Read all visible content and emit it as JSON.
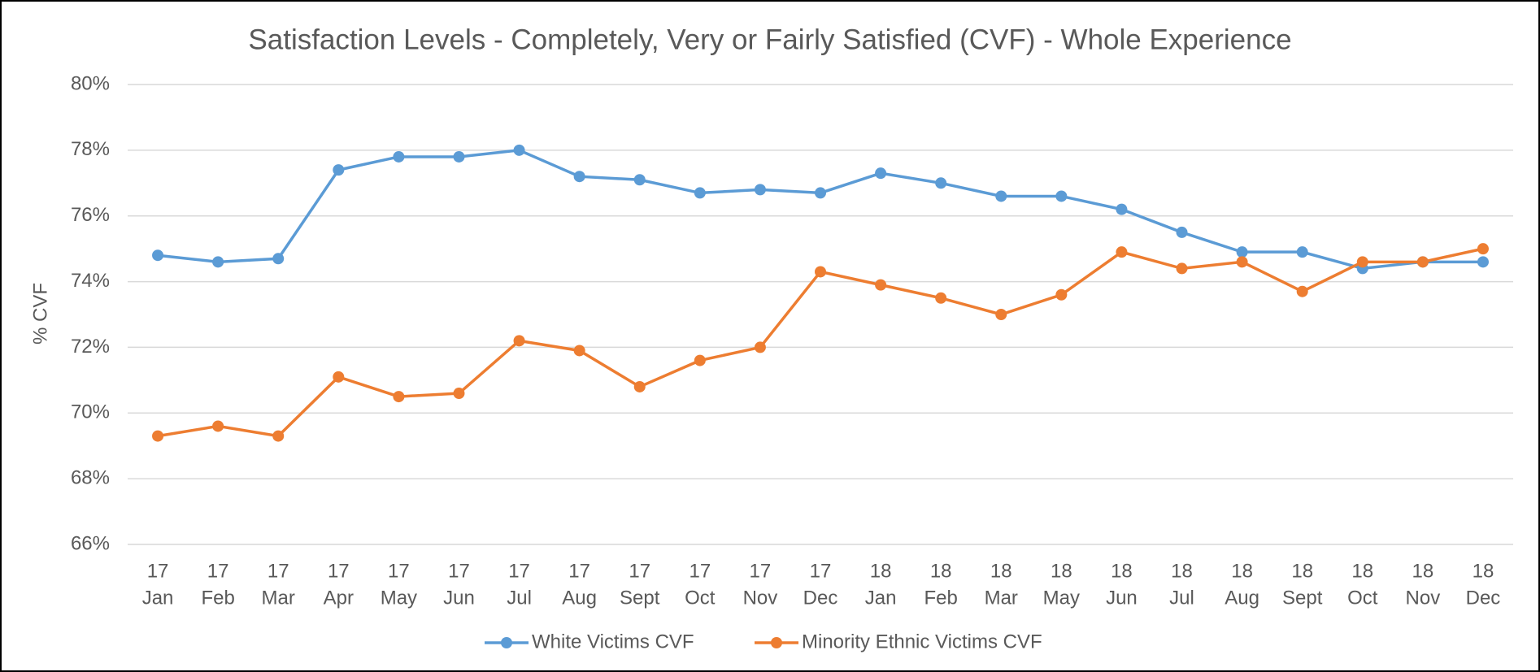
{
  "chart_data": {
    "type": "line",
    "title": "Satisfaction Levels - Completely, Very or Fairly Satisfied (CVF) - Whole Experience",
    "y_label": "% CVF",
    "categories": [
      [
        "17",
        "Jan"
      ],
      [
        "17",
        "Feb"
      ],
      [
        "17",
        "Mar"
      ],
      [
        "17",
        "Apr"
      ],
      [
        "17",
        "May"
      ],
      [
        "17",
        "Jun"
      ],
      [
        "17",
        "Jul"
      ],
      [
        "17",
        "Aug"
      ],
      [
        "17",
        "Sept"
      ],
      [
        "17",
        "Oct"
      ],
      [
        "17",
        "Nov"
      ],
      [
        "17",
        "Dec"
      ],
      [
        "18",
        "Jan"
      ],
      [
        "18",
        "Feb"
      ],
      [
        "18",
        "Mar"
      ],
      [
        "18",
        "May"
      ],
      [
        "18",
        "Jun"
      ],
      [
        "18",
        "Jul"
      ],
      [
        "18",
        "Aug"
      ],
      [
        "18",
        "Sept"
      ],
      [
        "18",
        "Oct"
      ],
      [
        "18",
        "Nov"
      ],
      [
        "18",
        "Dec"
      ]
    ],
    "series": [
      {
        "name": "White Victims CVF",
        "color": "#5b9bd5",
        "values": [
          74.8,
          74.6,
          74.7,
          77.4,
          77.8,
          77.8,
          78.0,
          77.2,
          77.1,
          76.7,
          76.8,
          76.7,
          77.3,
          77.0,
          76.6,
          76.6,
          76.2,
          75.5,
          74.9,
          74.9,
          74.4,
          74.6,
          74.6
        ]
      },
      {
        "name": "Minority Ethnic Victims CVF",
        "color": "#ed7d31",
        "values": [
          69.3,
          69.6,
          69.3,
          71.1,
          70.5,
          70.6,
          72.2,
          71.9,
          70.8,
          71.6,
          72.0,
          74.3,
          73.9,
          73.5,
          73.0,
          73.6,
          74.9,
          74.4,
          74.6,
          73.7,
          74.6,
          74.6,
          75.0
        ]
      }
    ],
    "ylim": [
      66,
      80
    ],
    "yticks": [
      {
        "value": 66,
        "label": "66%"
      },
      {
        "value": 68,
        "label": "68%"
      },
      {
        "value": 70,
        "label": "70%"
      },
      {
        "value": 72,
        "label": "72%"
      },
      {
        "value": 74,
        "label": "74%"
      },
      {
        "value": 76,
        "label": "76%"
      },
      {
        "value": 78,
        "label": "78%"
      },
      {
        "value": 80,
        "label": "80%"
      }
    ],
    "grid": true,
    "legend": "bottom"
  }
}
